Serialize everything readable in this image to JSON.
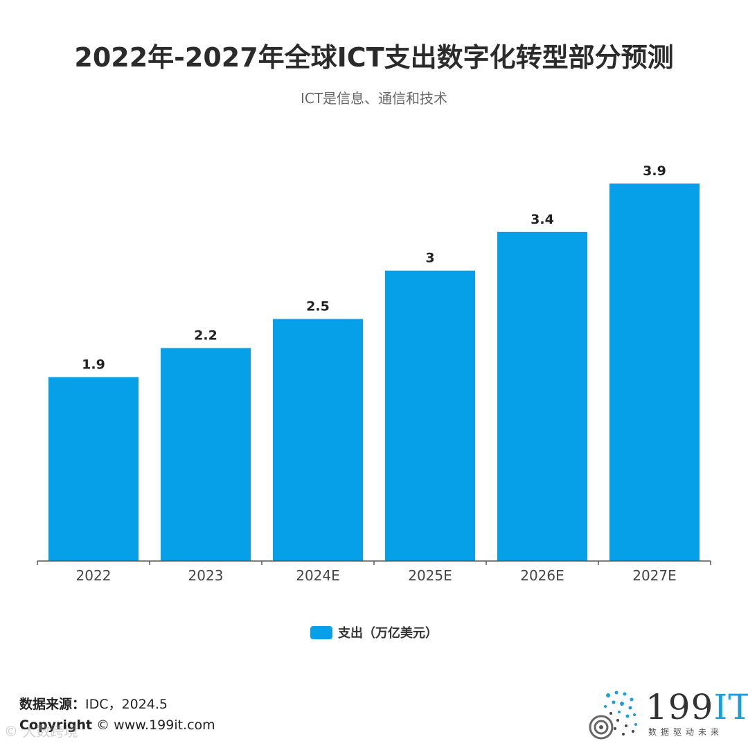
{
  "header": {
    "title": "2022年-2027年全球ICT支出数字化转型部分预测",
    "subtitle": "ICT是信息、通信和技术"
  },
  "chart_data": {
    "type": "bar",
    "categories": [
      "2022",
      "2023",
      "2024E",
      "2025E",
      "2026E",
      "2027E"
    ],
    "series": [
      {
        "name": "支出（万亿美元）",
        "values": [
          1.9,
          2.2,
          2.5,
          3,
          3.4,
          3.9
        ],
        "color": "#05a0e8"
      }
    ],
    "data_labels": [
      "1.9",
      "2.2",
      "2.5",
      "3",
      "3.4",
      "3.9"
    ],
    "ylim": [
      0,
      4.2
    ],
    "grid": false,
    "legend_position": "bottom-center"
  },
  "legend": {
    "label": "支出（万亿美元）",
    "color": "#05a0e8"
  },
  "footer": {
    "source_label": "数据来源：",
    "source_value": "IDC，2024.5",
    "copyright_label": "Copyright",
    "copyright_value": "© www.199it.com",
    "watermark": "© 大数跨境",
    "logo_text_num": "199",
    "logo_text_it": "IT",
    "logo_tagline": "数据驱动未来"
  }
}
